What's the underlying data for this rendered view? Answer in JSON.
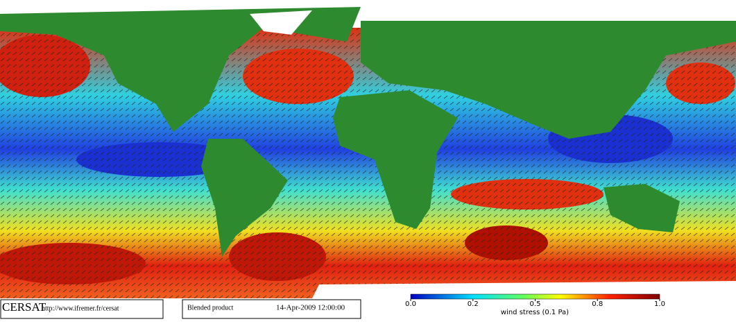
{
  "footer": {
    "logo": "CERSAT",
    "url": "http://www.ifremer.fr/cersat",
    "product": "Blended product",
    "date": "14-Apr-2009 12:00:00"
  },
  "colorbar": {
    "label": "wind stress (0.1 Pa)",
    "ticks": [
      {
        "value": 0,
        "label": "0.0"
      },
      {
        "value": 0.2,
        "label": "0.2"
      },
      {
        "value": 0.5,
        "label": "0.5"
      },
      {
        "value": 0.8,
        "label": "0.8"
      },
      {
        "value": 1,
        "label": "1.0"
      }
    ]
  }
}
